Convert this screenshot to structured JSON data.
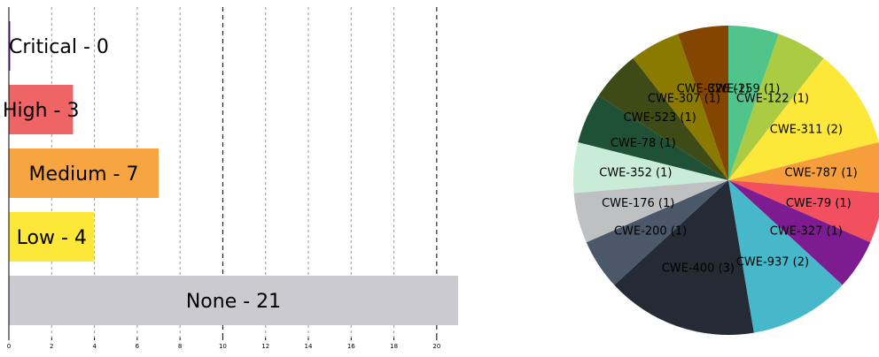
{
  "chart_data": [
    {
      "type": "bar",
      "orientation": "horizontal",
      "categories": [
        "Critical",
        "High",
        "Medium",
        "Low",
        "None"
      ],
      "values": [
        0,
        3,
        7,
        4,
        21
      ],
      "bar_labels": [
        "Critical - 0",
        "High - 3",
        "Medium - 7",
        "Low - 4",
        "None - 21"
      ],
      "colors": [
        "#7b1fa2",
        "#ef6464",
        "#f7a541",
        "#fde83a",
        "#cbcbcf"
      ],
      "xlim": [
        0,
        21
      ],
      "xticks": [
        0,
        2,
        4,
        6,
        8,
        10,
        12,
        14,
        16,
        18,
        20
      ],
      "major_gridlines": [
        10,
        20
      ],
      "grid": "vertical dashed"
    },
    {
      "type": "pie",
      "start_angle_deg": 90,
      "direction": "clockwise",
      "slices": [
        {
          "label": "CWE-259 (1)",
          "value": 1,
          "color": "#51c48b"
        },
        {
          "label": "CWE-122 (1)",
          "value": 1,
          "color": "#aacb42"
        },
        {
          "label": "CWE-311 (2)",
          "value": 2,
          "color": "#fde83a"
        },
        {
          "label": "CWE-787 (1)",
          "value": 1,
          "color": "#f79e3c"
        },
        {
          "label": "CWE-79 (1)",
          "value": 1,
          "color": "#f2505f"
        },
        {
          "label": "CWE-327 (1)",
          "value": 1,
          "color": "#7d1c91"
        },
        {
          "label": "CWE-937 (2)",
          "value": 2,
          "color": "#46b8ca"
        },
        {
          "label": "CWE-400 (3)",
          "value": 3,
          "color": "#252b35"
        },
        {
          "label": "CWE-200 (1)",
          "value": 1,
          "color": "#4a5869"
        },
        {
          "label": "CWE-176 (1)",
          "value": 1,
          "color": "#bfc0c1"
        },
        {
          "label": "CWE-352 (1)",
          "value": 1,
          "color": "#c9ecd8"
        },
        {
          "label": "CWE-78 (1)",
          "value": 1,
          "color": "#1e5135"
        },
        {
          "label": "CWE-523 (1)",
          "value": 1,
          "color": "#3e4b16"
        },
        {
          "label": "CWE-307 (1)",
          "value": 1,
          "color": "#8b7a00"
        },
        {
          "label": "CWE-326 (1)",
          "value": 1,
          "color": "#834500"
        }
      ]
    }
  ]
}
